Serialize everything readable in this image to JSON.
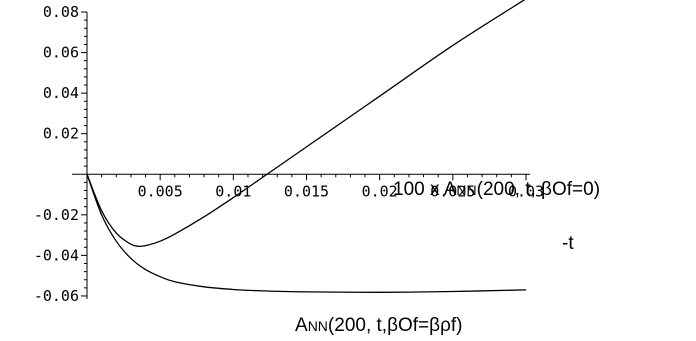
{
  "chart_data": {
    "type": "line",
    "title": "",
    "xlabel": "-t",
    "ylabel": "",
    "xlim": [
      0,
      0.03
    ],
    "ylim": [
      -0.06,
      0.08
    ],
    "grid": false,
    "x_ticks": [
      {
        "value": 0.005,
        "label": "0.005"
      },
      {
        "value": 0.01,
        "label": "0.01"
      },
      {
        "value": 0.015,
        "label": "0.015"
      },
      {
        "value": 0.02,
        "label": "0.02"
      },
      {
        "value": 0.025,
        "label": "0.025"
      },
      {
        "value": 0.03,
        "label": "0.03"
      }
    ],
    "y_ticks": [
      {
        "value": 0.08,
        "label": "0.08"
      },
      {
        "value": 0.06,
        "label": "0.06"
      },
      {
        "value": 0.04,
        "label": "0.04"
      },
      {
        "value": 0.02,
        "label": "0.02"
      },
      {
        "value": -0.02,
        "label": "-0.02"
      },
      {
        "value": -0.04,
        "label": "-0.04"
      },
      {
        "value": -0.06,
        "label": "-0.06"
      }
    ],
    "series": [
      {
        "name": "100 x ANN(200, t, βOf=0)",
        "x": [
          0,
          0.001,
          0.002,
          0.003,
          0.0035,
          0.004,
          0.005,
          0.006,
          0.008,
          0.01,
          0.0125,
          0.015,
          0.02,
          0.025,
          0.03
        ],
        "y": [
          0,
          -0.018,
          -0.029,
          -0.0345,
          -0.0355,
          -0.0352,
          -0.033,
          -0.0295,
          -0.021,
          -0.0115,
          0.001,
          0.0135,
          0.0385,
          0.0635,
          0.0865
        ]
      },
      {
        "name": "ANN(200, t,βOf=βρf)",
        "x": [
          0,
          0.001,
          0.002,
          0.003,
          0.004,
          0.005,
          0.006,
          0.008,
          0.01,
          0.012,
          0.015,
          0.02,
          0.025,
          0.03
        ],
        "y": [
          0,
          -0.02,
          -0.033,
          -0.0415,
          -0.047,
          -0.0505,
          -0.053,
          -0.0555,
          -0.0568,
          -0.0575,
          -0.058,
          -0.0582,
          -0.0578,
          -0.057
        ]
      }
    ]
  },
  "annotations": {
    "upper": {
      "prefix": "100 x A",
      "subscript": "NN",
      "suffix": "(200, t, βOf=0)"
    },
    "lower": {
      "prefix": "A",
      "subscript": "NN",
      "suffix": "(200, t,βOf=βρf)"
    },
    "x_axis_label": "-t"
  }
}
